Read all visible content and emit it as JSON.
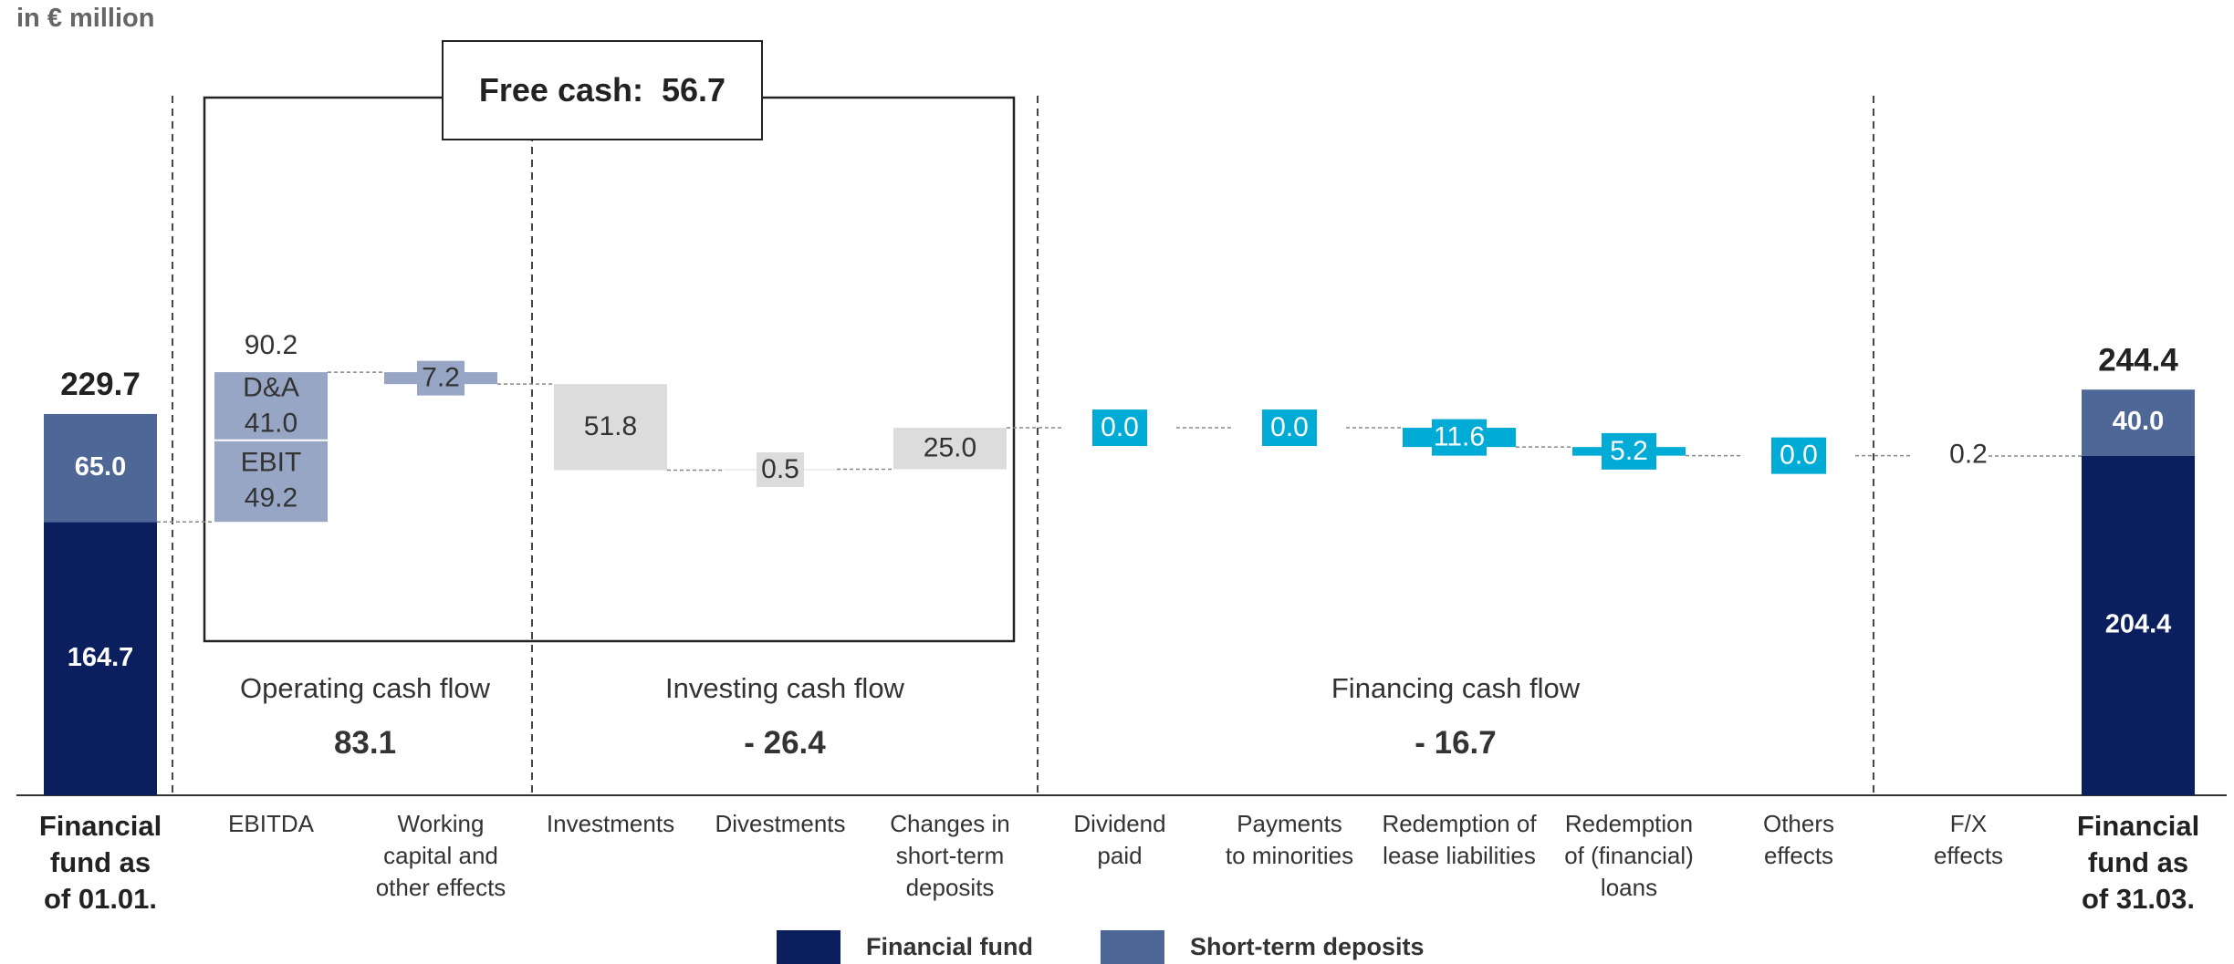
{
  "unit_label": "in € million",
  "free_cash_label": "Free cash:  56.7",
  "sections": [
    {
      "label": "Operating cash flow",
      "value": "83.1"
    },
    {
      "label": "Investing cash flow",
      "value": "- 26.4"
    },
    {
      "label": "Financing cash flow",
      "value": "- 16.7"
    }
  ],
  "colors": {
    "financial_fund": "#0b1f5f",
    "short_term_deposits": "#4e6797",
    "operating": "#98a6c6",
    "investing": "#dcdcdc",
    "financing": "#00acd6"
  },
  "legend": [
    {
      "label": "Financial fund",
      "color": "#0b1f5f"
    },
    {
      "label": "Short-term deposits",
      "color": "#4e6797"
    }
  ],
  "chart_data": {
    "type": "bar",
    "subtype": "waterfall",
    "unit": "in € million",
    "categories": [
      "Financial fund as of 01.01.",
      "EBITDA",
      "Working capital and other effects",
      "Investments",
      "Divestments",
      "Changes in short-term deposits",
      "Dividend paid",
      "Payments to minorities",
      "Redemption of lease liabilities",
      "Redemption of (financial) loans",
      "Others effects",
      "F/X effects",
      "Financial fund as of 31.03."
    ],
    "start": {
      "total": 229.7,
      "financial_fund": 164.7,
      "short_term_deposits": 65.0
    },
    "end": {
      "total": 244.4,
      "financial_fund": 204.4,
      "short_term_deposits": 40.0
    },
    "steps": [
      {
        "category": "EBITDA",
        "label": "90.2",
        "value": 90.2,
        "parts": [
          {
            "name": "D&A",
            "value": "41.0"
          },
          {
            "name": "EBIT",
            "value": "49.2"
          }
        ]
      },
      {
        "category": "Working capital and other effects",
        "label": "7.2",
        "value": -7.2
      },
      {
        "category": "Investments",
        "label": "51.8",
        "value": -51.8
      },
      {
        "category": "Divestments",
        "label": "0.5",
        "value": 0.5
      },
      {
        "category": "Changes in short-term deposits",
        "label": "25.0",
        "value": 25.0
      },
      {
        "category": "Dividend paid",
        "label": "0.0",
        "value": 0.0
      },
      {
        "category": "Payments to minorities",
        "label": "0.0",
        "value": 0.0
      },
      {
        "category": "Redemption of lease liabilities",
        "label": "11.6",
        "value": -11.6
      },
      {
        "category": "Redemption of (financial) loans",
        "label": "5.2",
        "value": -5.2
      },
      {
        "category": "Others effects",
        "label": "0.0",
        "value": 0.0
      },
      {
        "category": "F/X effects",
        "label": "0.2",
        "value": 0.2
      }
    ],
    "category_labels": [
      "Financial\nfund as\nof 01.01.",
      "EBITDA",
      "Working\ncapital and\nother effects",
      "Investments",
      "Divestments",
      "Changes in\nshort-term\ndeposits",
      "Dividend\npaid",
      "Payments\nto minorities",
      "Redemption of\nlease liabilities",
      "Redemption\nof (financial)\nloans",
      "Others\neffects",
      "F/X\neffects",
      "Financial\nfund as\nof 31.03."
    ]
  }
}
